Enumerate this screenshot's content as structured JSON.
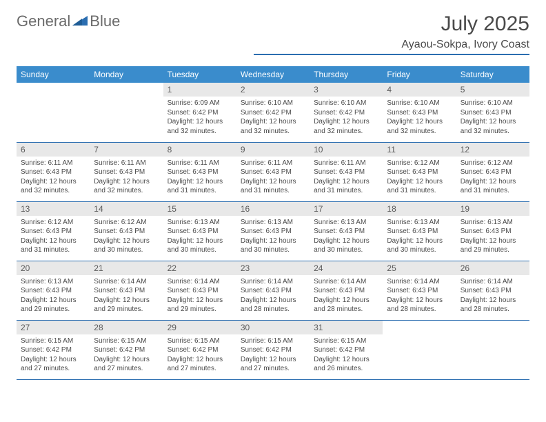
{
  "brand": {
    "word1": "General",
    "word2": "Blue"
  },
  "title": "July 2025",
  "location": "Ayaou-Sokpa, Ivory Coast",
  "colors": {
    "header_bg": "#3a8ccc",
    "rule": "#2a6db0",
    "daynum_bg": "#e8e8e8",
    "text": "#4a4a4a"
  },
  "typography": {
    "title_fontsize": 30,
    "location_fontsize": 16,
    "header_fontsize": 12,
    "daynum_fontsize": 12,
    "body_fontsize": 10
  },
  "day_headers": [
    "Sunday",
    "Monday",
    "Tuesday",
    "Wednesday",
    "Thursday",
    "Friday",
    "Saturday"
  ],
  "weeks": [
    [
      {
        "n": "",
        "sr": "",
        "ss": "",
        "dl": ""
      },
      {
        "n": "",
        "sr": "",
        "ss": "",
        "dl": ""
      },
      {
        "n": "1",
        "sr": "Sunrise: 6:09 AM",
        "ss": "Sunset: 6:42 PM",
        "dl": "Daylight: 12 hours and 32 minutes."
      },
      {
        "n": "2",
        "sr": "Sunrise: 6:10 AM",
        "ss": "Sunset: 6:42 PM",
        "dl": "Daylight: 12 hours and 32 minutes."
      },
      {
        "n": "3",
        "sr": "Sunrise: 6:10 AM",
        "ss": "Sunset: 6:42 PM",
        "dl": "Daylight: 12 hours and 32 minutes."
      },
      {
        "n": "4",
        "sr": "Sunrise: 6:10 AM",
        "ss": "Sunset: 6:43 PM",
        "dl": "Daylight: 12 hours and 32 minutes."
      },
      {
        "n": "5",
        "sr": "Sunrise: 6:10 AM",
        "ss": "Sunset: 6:43 PM",
        "dl": "Daylight: 12 hours and 32 minutes."
      }
    ],
    [
      {
        "n": "6",
        "sr": "Sunrise: 6:11 AM",
        "ss": "Sunset: 6:43 PM",
        "dl": "Daylight: 12 hours and 32 minutes."
      },
      {
        "n": "7",
        "sr": "Sunrise: 6:11 AM",
        "ss": "Sunset: 6:43 PM",
        "dl": "Daylight: 12 hours and 32 minutes."
      },
      {
        "n": "8",
        "sr": "Sunrise: 6:11 AM",
        "ss": "Sunset: 6:43 PM",
        "dl": "Daylight: 12 hours and 31 minutes."
      },
      {
        "n": "9",
        "sr": "Sunrise: 6:11 AM",
        "ss": "Sunset: 6:43 PM",
        "dl": "Daylight: 12 hours and 31 minutes."
      },
      {
        "n": "10",
        "sr": "Sunrise: 6:11 AM",
        "ss": "Sunset: 6:43 PM",
        "dl": "Daylight: 12 hours and 31 minutes."
      },
      {
        "n": "11",
        "sr": "Sunrise: 6:12 AM",
        "ss": "Sunset: 6:43 PM",
        "dl": "Daylight: 12 hours and 31 minutes."
      },
      {
        "n": "12",
        "sr": "Sunrise: 6:12 AM",
        "ss": "Sunset: 6:43 PM",
        "dl": "Daylight: 12 hours and 31 minutes."
      }
    ],
    [
      {
        "n": "13",
        "sr": "Sunrise: 6:12 AM",
        "ss": "Sunset: 6:43 PM",
        "dl": "Daylight: 12 hours and 31 minutes."
      },
      {
        "n": "14",
        "sr": "Sunrise: 6:12 AM",
        "ss": "Sunset: 6:43 PM",
        "dl": "Daylight: 12 hours and 30 minutes."
      },
      {
        "n": "15",
        "sr": "Sunrise: 6:13 AM",
        "ss": "Sunset: 6:43 PM",
        "dl": "Daylight: 12 hours and 30 minutes."
      },
      {
        "n": "16",
        "sr": "Sunrise: 6:13 AM",
        "ss": "Sunset: 6:43 PM",
        "dl": "Daylight: 12 hours and 30 minutes."
      },
      {
        "n": "17",
        "sr": "Sunrise: 6:13 AM",
        "ss": "Sunset: 6:43 PM",
        "dl": "Daylight: 12 hours and 30 minutes."
      },
      {
        "n": "18",
        "sr": "Sunrise: 6:13 AM",
        "ss": "Sunset: 6:43 PM",
        "dl": "Daylight: 12 hours and 30 minutes."
      },
      {
        "n": "19",
        "sr": "Sunrise: 6:13 AM",
        "ss": "Sunset: 6:43 PM",
        "dl": "Daylight: 12 hours and 29 minutes."
      }
    ],
    [
      {
        "n": "20",
        "sr": "Sunrise: 6:13 AM",
        "ss": "Sunset: 6:43 PM",
        "dl": "Daylight: 12 hours and 29 minutes."
      },
      {
        "n": "21",
        "sr": "Sunrise: 6:14 AM",
        "ss": "Sunset: 6:43 PM",
        "dl": "Daylight: 12 hours and 29 minutes."
      },
      {
        "n": "22",
        "sr": "Sunrise: 6:14 AM",
        "ss": "Sunset: 6:43 PM",
        "dl": "Daylight: 12 hours and 29 minutes."
      },
      {
        "n": "23",
        "sr": "Sunrise: 6:14 AM",
        "ss": "Sunset: 6:43 PM",
        "dl": "Daylight: 12 hours and 28 minutes."
      },
      {
        "n": "24",
        "sr": "Sunrise: 6:14 AM",
        "ss": "Sunset: 6:43 PM",
        "dl": "Daylight: 12 hours and 28 minutes."
      },
      {
        "n": "25",
        "sr": "Sunrise: 6:14 AM",
        "ss": "Sunset: 6:43 PM",
        "dl": "Daylight: 12 hours and 28 minutes."
      },
      {
        "n": "26",
        "sr": "Sunrise: 6:14 AM",
        "ss": "Sunset: 6:43 PM",
        "dl": "Daylight: 12 hours and 28 minutes."
      }
    ],
    [
      {
        "n": "27",
        "sr": "Sunrise: 6:15 AM",
        "ss": "Sunset: 6:42 PM",
        "dl": "Daylight: 12 hours and 27 minutes."
      },
      {
        "n": "28",
        "sr": "Sunrise: 6:15 AM",
        "ss": "Sunset: 6:42 PM",
        "dl": "Daylight: 12 hours and 27 minutes."
      },
      {
        "n": "29",
        "sr": "Sunrise: 6:15 AM",
        "ss": "Sunset: 6:42 PM",
        "dl": "Daylight: 12 hours and 27 minutes."
      },
      {
        "n": "30",
        "sr": "Sunrise: 6:15 AM",
        "ss": "Sunset: 6:42 PM",
        "dl": "Daylight: 12 hours and 27 minutes."
      },
      {
        "n": "31",
        "sr": "Sunrise: 6:15 AM",
        "ss": "Sunset: 6:42 PM",
        "dl": "Daylight: 12 hours and 26 minutes."
      },
      {
        "n": "",
        "sr": "",
        "ss": "",
        "dl": ""
      },
      {
        "n": "",
        "sr": "",
        "ss": "",
        "dl": ""
      }
    ]
  ]
}
